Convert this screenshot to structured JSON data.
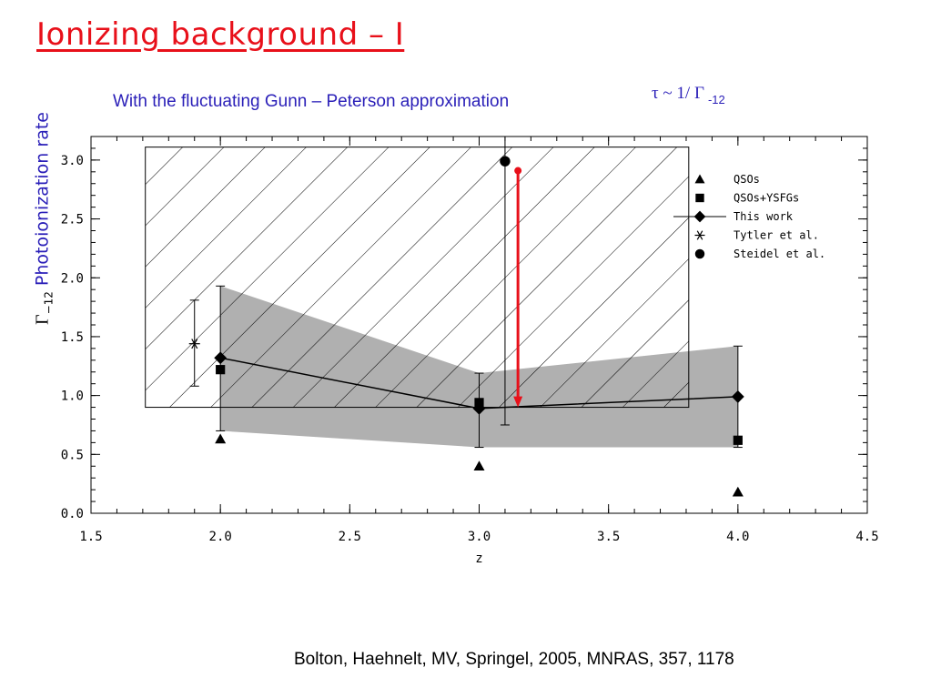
{
  "slide": {
    "title": "Ionizing background – I",
    "subtitle": "With the fluctuating Gunn – Peterson approximation",
    "tau_relation": "τ ~ 1/ Γ",
    "tau_subscript": "-12",
    "citation": "Bolton, Haehnelt, MV, Springel, 2005, MNRAS, 357, 1178"
  },
  "chart_data": {
    "type": "scatter",
    "xlabel": "z",
    "ylabel_symbol": "Γ",
    "ylabel_subscript": "−12",
    "ylabel": "Photoionization rate",
    "xlim": [
      1.5,
      4.5
    ],
    "ylim": [
      0.0,
      3.2
    ],
    "xticks": [
      "1.5",
      "2.0",
      "2.5",
      "3.0",
      "3.5",
      "4.0",
      "4.5"
    ],
    "yticks": [
      "0.0",
      "0.5",
      "1.0",
      "1.5",
      "2.0",
      "2.5",
      "3.0"
    ],
    "legend_position": "top-right",
    "series": [
      {
        "name": "QSOs",
        "marker": "triangle",
        "points": [
          {
            "x": 2.0,
            "y": 0.63
          },
          {
            "x": 3.0,
            "y": 0.4
          },
          {
            "x": 4.0,
            "y": 0.18
          }
        ]
      },
      {
        "name": "QSOs+YSFGs",
        "marker": "square",
        "points": [
          {
            "x": 2.0,
            "y": 1.22
          },
          {
            "x": 3.0,
            "y": 0.94
          },
          {
            "x": 4.0,
            "y": 0.62
          }
        ]
      },
      {
        "name": "This work",
        "marker": "diamond",
        "connected": true,
        "points": [
          {
            "x": 2.0,
            "y": 1.32,
            "ylo": 0.7,
            "yhi": 1.93
          },
          {
            "x": 3.0,
            "y": 0.89,
            "ylo": 0.56,
            "yhi": 1.19
          },
          {
            "x": 4.0,
            "y": 0.99,
            "ylo": 0.56,
            "yhi": 1.42
          }
        ]
      },
      {
        "name": "Tytler et al.",
        "marker": "asterisk",
        "points": [
          {
            "x": 1.9,
            "y": 1.44,
            "ylo": 1.08,
            "yhi": 1.81
          }
        ]
      },
      {
        "name": "Steidel et al.",
        "marker": "circle",
        "points": [
          {
            "x": 3.1,
            "y": 2.99,
            "ylo": 0.75,
            "yhi": 3.2
          }
        ]
      }
    ],
    "shaded_band": {
      "x": [
        2.0,
        3.0,
        4.0
      ],
      "lower": [
        0.7,
        0.56,
        0.56
      ],
      "upper": [
        1.93,
        1.19,
        1.42
      ],
      "color": "#b0b0b0"
    },
    "hatched_region": {
      "x": [
        1.71,
        3.81
      ],
      "y": [
        0.9,
        3.11
      ]
    },
    "arrow": {
      "x": 3.15,
      "from": 2.91,
      "to": 0.9,
      "color": "#e8101a"
    }
  }
}
